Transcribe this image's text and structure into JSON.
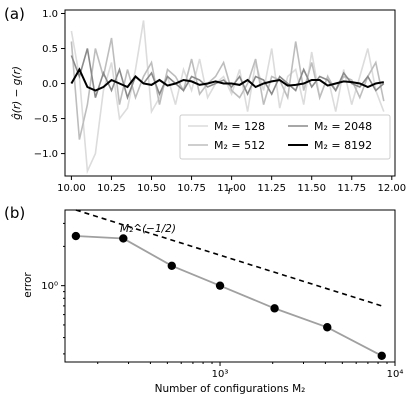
{
  "chart_data": [
    {
      "panel": "(a)",
      "type": "line",
      "xlabel": "r",
      "ylabel": "ĝ(r) − g(r)",
      "xlim": [
        9.96,
        12.02
      ],
      "ylim": [
        -1.32,
        1.05
      ],
      "xticks": [
        "10.00",
        "10.25",
        "10.50",
        "10.75",
        "11.00",
        "11.25",
        "11.50",
        "11.75",
        "12.00"
      ],
      "xtick_values": [
        10.0,
        10.25,
        10.5,
        10.75,
        11.0,
        11.25,
        11.5,
        11.75,
        12.0
      ],
      "yticks": [
        "−1.0",
        "−0.5",
        "0.0",
        "0.5",
        "1.0"
      ],
      "ytick_values": [
        -1.0,
        -0.5,
        0.0,
        0.5,
        1.0
      ],
      "grid": false,
      "legend": {
        "placement": "lower-right",
        "columns": 2
      },
      "x": [
        10.0,
        10.05,
        10.1,
        10.15,
        10.2,
        10.25,
        10.3,
        10.35,
        10.4,
        10.45,
        10.5,
        10.55,
        10.6,
        10.65,
        10.7,
        10.75,
        10.8,
        10.85,
        10.9,
        10.95,
        11.0,
        11.05,
        11.1,
        11.15,
        11.2,
        11.25,
        11.3,
        11.35,
        11.4,
        11.45,
        11.5,
        11.55,
        11.6,
        11.65,
        11.7,
        11.75,
        11.8,
        11.85,
        11.9,
        11.95
      ],
      "series": [
        {
          "name": "M₂ = 128",
          "color": "#dcdcdc",
          "values": [
            0.75,
            0.1,
            -1.25,
            -1.0,
            -0.1,
            0.3,
            -0.5,
            -0.35,
            0.2,
            0.9,
            -0.4,
            -0.2,
            0.1,
            -0.3,
            0.2,
            -0.1,
            0.35,
            -0.2,
            0.0,
            0.1,
            -0.15,
            0.2,
            -0.4,
            0.3,
            -0.1,
            0.5,
            -0.35,
            0.1,
            0.2,
            -0.3,
            0.45,
            -0.2,
            0.1,
            -0.4,
            0.2,
            -0.3,
            0.1,
            0.5,
            -0.1,
            -0.4
          ]
        },
        {
          "name": "M₂ = 512",
          "color": "#bdbdbd",
          "values": [
            0.6,
            -0.8,
            -0.3,
            0.5,
            0.1,
            0.65,
            -0.3,
            0.2,
            -0.2,
            0.1,
            0.3,
            -0.3,
            0.2,
            0.1,
            -0.1,
            0.35,
            -0.15,
            0.0,
            0.1,
            0.3,
            -0.1,
            -0.2,
            0.0,
            0.35,
            -0.3,
            0.1,
            0.05,
            -0.2,
            0.6,
            -0.1,
            0.3,
            -0.2,
            0.1,
            -0.1,
            0.1,
            0.05,
            -0.2,
            0.1,
            0.3,
            -0.25
          ]
        },
        {
          "name": "M₂ = 2048",
          "color": "#8a8a8a",
          "values": [
            0.4,
            0.1,
            0.5,
            -0.2,
            0.15,
            -0.1,
            0.2,
            -0.2,
            0.1,
            0.0,
            0.15,
            -0.15,
            0.1,
            0.0,
            -0.1,
            0.1,
            0.05,
            -0.05,
            0.0,
            0.05,
            -0.05,
            0.1,
            -0.15,
            0.1,
            0.05,
            -0.15,
            0.1,
            0.0,
            -0.1,
            0.2,
            -0.05,
            0.1,
            0.05,
            -0.1,
            0.15,
            0.0,
            -0.05,
            0.1,
            -0.1,
            0.0
          ]
        },
        {
          "name": "M₂ = 8192",
          "color": "#000000",
          "values": [
            0.0,
            0.2,
            -0.05,
            -0.1,
            -0.05,
            0.05,
            0.0,
            -0.05,
            0.1,
            0.0,
            -0.02,
            0.05,
            -0.03,
            0.0,
            0.05,
            0.03,
            -0.02,
            0.0,
            0.03,
            0.0,
            0.0,
            -0.02,
            0.05,
            -0.05,
            0.0,
            0.03,
            0.05,
            -0.03,
            -0.02,
            0.0,
            0.05,
            0.05,
            -0.03,
            0.0,
            0.03,
            0.02,
            0.0,
            -0.05,
            0.0,
            0.02
          ]
        }
      ]
    },
    {
      "panel": "(b)",
      "type": "line",
      "xscale": "log",
      "yscale": "log",
      "xlabel": "Number of configurations M₂",
      "ylabel": "error",
      "xlim": [
        130,
        10000
      ],
      "ylim": [
        0.26,
        3.8
      ],
      "xticks": [
        "10³",
        "10⁴"
      ],
      "xtick_values": [
        1000,
        10000
      ],
      "yticks": [
        "10⁰"
      ],
      "ytick_values": [
        1.0
      ],
      "grid": false,
      "series": [
        {
          "name": "",
          "color": "#a0a0a0",
          "marker": "o",
          "x": [
            150,
            280,
            530,
            1000,
            2050,
            4100,
            8400
          ],
          "values": [
            2.4,
            2.3,
            1.42,
            1.0,
            0.67,
            0.48,
            0.29
          ]
        }
      ],
      "reference_line": {
        "label": "M₂^(−1/2)",
        "style": "dashed",
        "color": "#000000",
        "x": [
          150,
          8400
        ],
        "values": [
          3.8,
          0.7
        ]
      }
    }
  ],
  "text": {
    "panel_a": "(a)",
    "panel_b": "(b)",
    "ylabel_a": "ĝ(r) − g(r)",
    "xlabel_a": "r",
    "ylabel_b": "error",
    "xlabel_b": "Number of configurations M₂",
    "ref_label": "M₂^(−1/2)"
  }
}
